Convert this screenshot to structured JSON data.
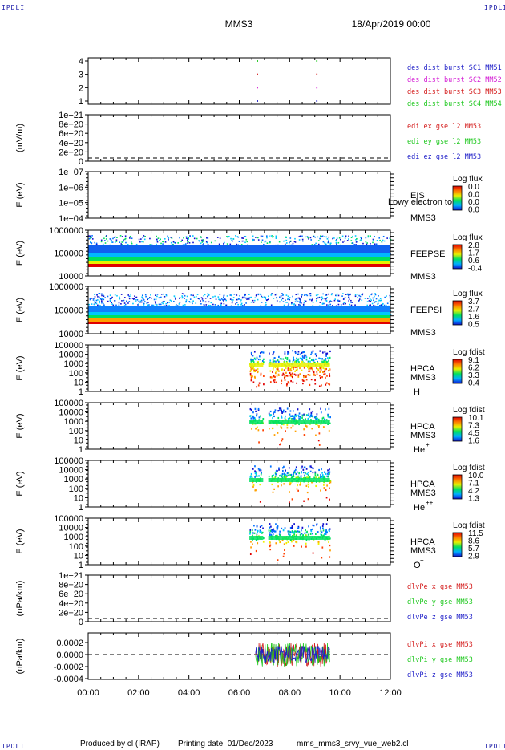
{
  "header": {
    "corner_tag": "IPDLI",
    "spacecraft": "MMS3",
    "date": "18/Apr/2019 00:00"
  },
  "footer": {
    "producer": "Produced by cl (IRAP)",
    "printing_date": "Printing date: 01/Dec/2023",
    "filename": "mms_mms3_srvy_vue_web2.cl"
  },
  "colors": {
    "frame": "#000000",
    "blue": "#1f1fc8",
    "magenta": "#d41cd4",
    "red": "#d41c1c",
    "green": "#1ec81e"
  },
  "chart_data": [
    {
      "type": "scatter",
      "name": "burst-flags",
      "ylim": [
        0.5,
        4.5
      ],
      "yticks": [
        "4",
        "3",
        "2",
        "1"
      ],
      "legend": [
        {
          "label": "des dist burst SC1 MM51",
          "color": "#1f1fc8"
        },
        {
          "label": "des dist burst SC2 MM52",
          "color": "#d41cd4"
        },
        {
          "label": "des dist burst SC3 MM53",
          "color": "#d41c1c"
        },
        {
          "label": "des dist burst SC4 MM54",
          "color": "#1ec81e"
        }
      ],
      "series": [
        {
          "sc": 1,
          "times": [
            6.72,
            9.08
          ]
        },
        {
          "sc": 2,
          "times": [
            6.72,
            9.08
          ]
        },
        {
          "sc": 3,
          "times": [
            6.72,
            9.08
          ]
        },
        {
          "sc": 4,
          "times": [
            6.72,
            9.08
          ]
        }
      ]
    },
    {
      "type": "line",
      "name": "edi-e-field",
      "ylabel": "(mV/m)",
      "yticks": [
        "1e+21",
        "8e+20",
        "6e+20",
        "4e+20",
        "2e+20",
        "0"
      ],
      "legend": [
        {
          "label": "edi ex gse l2 MM53",
          "color": "#d41c1c"
        },
        {
          "label": "edi ey gse l2 MM53",
          "color": "#1ec81e"
        },
        {
          "label": "edi ez gse l2 MM53",
          "color": "#1f1fc8"
        }
      ]
    },
    {
      "type": "heatmap",
      "name": "eis",
      "ylabel": "E (eV)",
      "yticks": [
        "1e+07",
        "1e+06",
        "1e+05",
        "1e+04"
      ],
      "instrument": "EIS",
      "instrument_sub": "MMS3",
      "overlay": "Lowy electron to",
      "colorbar_title": "Log flux",
      "colorbar_ticks": [
        "0.0",
        "0.0",
        "0.0",
        "0.0"
      ]
    },
    {
      "type": "heatmap",
      "name": "feepse",
      "ylabel": "E (eV)",
      "yticks": [
        "1000000",
        "100000",
        "10000"
      ],
      "instrument": "FEEPSE",
      "instrument_sub": "MMS3",
      "colorbar_title": "Log flux",
      "colorbar_ticks": [
        "2.8",
        "1.7",
        "0.6",
        "-0.4"
      ],
      "time_range": [
        0,
        12
      ]
    },
    {
      "type": "heatmap",
      "name": "feepsi",
      "ylabel": "E (eV)",
      "yticks": [
        "1000000",
        "100000",
        "10000"
      ],
      "instrument": "FEEPSI",
      "instrument_sub": "MMS3",
      "colorbar_title": "Log flux",
      "colorbar_ticks": [
        "3.7",
        "2.7",
        "1.6",
        "0.5"
      ],
      "time_range": [
        0,
        12
      ]
    },
    {
      "type": "heatmap",
      "name": "hpca-h",
      "ylabel": "E (eV)",
      "yticks": [
        "100000",
        "10000",
        "1000",
        "100",
        "10",
        "1"
      ],
      "instrument": "HPCA",
      "instrument_sub": "MMS3",
      "species": "H",
      "charge": "+",
      "colorbar_title": "Log fdist",
      "colorbar_ticks": [
        "9.1",
        "6.2",
        "3.3",
        "0.4"
      ],
      "time_segments": [
        [
          6.4,
          6.95
        ],
        [
          7.15,
          9.6
        ]
      ]
    },
    {
      "type": "heatmap",
      "name": "hpca-he",
      "ylabel": "E (eV)",
      "yticks": [
        "100000",
        "10000",
        "1000",
        "100",
        "10",
        "1"
      ],
      "instrument": "HPCA",
      "instrument_sub": "MMS3",
      "species": "He",
      "charge": "+",
      "colorbar_title": "Log fdist",
      "colorbar_ticks": [
        "10.1",
        "7.3",
        "4.5",
        "1.6"
      ],
      "time_segments": [
        [
          6.4,
          6.95
        ],
        [
          7.15,
          9.6
        ]
      ]
    },
    {
      "type": "heatmap",
      "name": "hpca-he2",
      "ylabel": "E (eV)",
      "yticks": [
        "100000",
        "10000",
        "1000",
        "100",
        "10",
        "1"
      ],
      "instrument": "HPCA",
      "instrument_sub": "MMS3",
      "species": "He",
      "charge": "++",
      "colorbar_title": "Log fdist",
      "colorbar_ticks": [
        "10.0",
        "7.1",
        "4.2",
        "1.3"
      ],
      "time_segments": [
        [
          6.4,
          6.95
        ],
        [
          7.15,
          9.6
        ]
      ]
    },
    {
      "type": "heatmap",
      "name": "hpca-o",
      "ylabel": "E (eV)",
      "yticks": [
        "100000",
        "10000",
        "1000",
        "100",
        "10",
        "1"
      ],
      "instrument": "HPCA",
      "instrument_sub": "MMS3",
      "species": "O",
      "charge": "+",
      "colorbar_title": "Log fdist",
      "colorbar_ticks": [
        "11.5",
        "8.6",
        "5.7",
        "2.9"
      ],
      "time_segments": [
        [
          6.4,
          6.95
        ],
        [
          7.15,
          9.6
        ]
      ]
    },
    {
      "type": "line",
      "name": "divpe",
      "ylabel": "(nPa/km)",
      "yticks": [
        "1e+21",
        "8e+20",
        "6e+20",
        "4e+20",
        "2e+20",
        "0"
      ],
      "legend": [
        {
          "label": "dlvPe x gse MM53",
          "color": "#d41c1c"
        },
        {
          "label": "dlvPe y gse MM53",
          "color": "#1ec81e"
        },
        {
          "label": "dlvPe z gse MM53",
          "color": "#1f1fc8"
        }
      ]
    },
    {
      "type": "line",
      "name": "divpi",
      "ylabel": "(nPa/km)",
      "yticks": [
        "0.0002",
        "0.0000",
        "-0.0002",
        "-0.0004"
      ],
      "ylim": [
        -0.00045,
        0.00028
      ],
      "legend": [
        {
          "label": "dlvPi x gse MM53",
          "color": "#d41c1c"
        },
        {
          "label": "dlvPi y gse MM53",
          "color": "#1ec81e"
        },
        {
          "label": "dlvPi z gse MM53",
          "color": "#1f1fc8"
        }
      ],
      "time_range": [
        6.65,
        9.6
      ],
      "amplitude": 0.00022
    }
  ],
  "time_axis": {
    "range_hours": [
      0,
      12
    ],
    "tick_labels": [
      "00:00",
      "02:00",
      "04:00",
      "06:00",
      "08:00",
      "10:00",
      "12:00"
    ]
  }
}
